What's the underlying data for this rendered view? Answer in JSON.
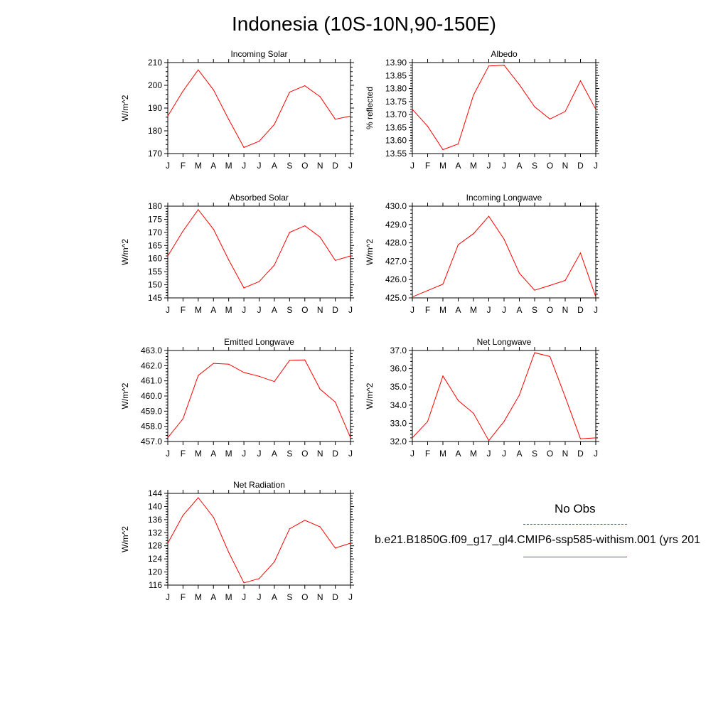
{
  "title": "Indonesia (10S-10N,90-150E)",
  "month_labels": [
    "J",
    "F",
    "M",
    "A",
    "M",
    "J",
    "J",
    "A",
    "S",
    "O",
    "N",
    "D",
    "J"
  ],
  "colors": {
    "model": "#ff0000",
    "obs": "#3344dd"
  },
  "legend": {
    "obs_label": "No Obs",
    "case_label": "b.e21.B1850G.f09_g17_gl4.CMIP6-ssp585-withism.001 (yrs 201"
  },
  "chart_data": [
    {
      "id": "incoming-solar",
      "type": "line",
      "title": "Incoming Solar",
      "ylabel": "W/m^2",
      "x": [
        "J",
        "F",
        "M",
        "A",
        "M",
        "J",
        "J",
        "A",
        "S",
        "O",
        "N",
        "D",
        "J"
      ],
      "ylim": [
        170,
        210
      ],
      "yticks": [
        170,
        180,
        190,
        200,
        210
      ],
      "ytick_labels": [
        "170",
        "180",
        "190",
        "200",
        "210"
      ],
      "series": [
        {
          "values": [
            186.5,
            197.5,
            206.8,
            198.0,
            185.0,
            172.7,
            175.4,
            182.8,
            197.0,
            199.8,
            195.0,
            185.1,
            186.5
          ]
        }
      ]
    },
    {
      "id": "albedo",
      "type": "line",
      "title": "Albedo",
      "ylabel": "% reflected",
      "x": [
        "J",
        "F",
        "M",
        "A",
        "M",
        "J",
        "J",
        "A",
        "S",
        "O",
        "N",
        "D",
        "J"
      ],
      "ylim": [
        13.55,
        13.9
      ],
      "yticks": [
        13.55,
        13.6,
        13.65,
        13.7,
        13.75,
        13.8,
        13.85,
        13.9
      ],
      "ytick_labels": [
        "13.55",
        "13.60",
        "13.65",
        "13.70",
        "13.75",
        "13.80",
        "13.85",
        "13.90"
      ],
      "series": [
        {
          "values": [
            13.72,
            13.655,
            13.565,
            13.587,
            13.775,
            13.887,
            13.89,
            13.815,
            13.73,
            13.683,
            13.712,
            13.83,
            13.72
          ]
        }
      ]
    },
    {
      "id": "absorbed-solar",
      "type": "line",
      "title": "Absorbed Solar",
      "ylabel": "W/m^2",
      "x": [
        "J",
        "F",
        "M",
        "A",
        "M",
        "J",
        "J",
        "A",
        "S",
        "O",
        "N",
        "D",
        "J"
      ],
      "ylim": [
        145,
        180
      ],
      "yticks": [
        145,
        150,
        155,
        160,
        165,
        170,
        175,
        180
      ],
      "ytick_labels": [
        "145",
        "150",
        "155",
        "160",
        "165",
        "170",
        "175",
        "180"
      ],
      "series": [
        {
          "values": [
            161.0,
            170.5,
            178.7,
            171.2,
            159.5,
            148.8,
            151.2,
            157.5,
            170.0,
            172.5,
            168.2,
            159.3,
            161.0
          ]
        }
      ]
    },
    {
      "id": "incoming-longwave",
      "type": "line",
      "title": "Incoming Longwave",
      "ylabel": "W/m^2",
      "x": [
        "J",
        "F",
        "M",
        "A",
        "M",
        "J",
        "J",
        "A",
        "S",
        "O",
        "N",
        "D",
        "J"
      ],
      "ylim": [
        425,
        430
      ],
      "yticks": [
        425,
        426,
        427,
        428,
        429,
        430
      ],
      "ytick_labels": [
        "425.0",
        "426.0",
        "427.0",
        "428.0",
        "429.0",
        "430.0"
      ],
      "series": [
        {
          "values": [
            425.05,
            425.4,
            425.75,
            427.9,
            428.5,
            429.45,
            428.2,
            426.35,
            425.42,
            425.68,
            425.95,
            427.45,
            425.05
          ]
        }
      ]
    },
    {
      "id": "emitted-longwave",
      "type": "line",
      "title": "Emitted Longwave",
      "ylabel": "W/m^2",
      "x": [
        "J",
        "F",
        "M",
        "A",
        "M",
        "J",
        "J",
        "A",
        "S",
        "O",
        "N",
        "D",
        "J"
      ],
      "ylim": [
        457,
        463
      ],
      "yticks": [
        457,
        458,
        459,
        460,
        461,
        462,
        463
      ],
      "ytick_labels": [
        "457.0",
        "458.0",
        "459.0",
        "460.0",
        "461.0",
        "462.0",
        "463.0"
      ],
      "series": [
        {
          "values": [
            457.25,
            458.5,
            461.35,
            462.15,
            462.1,
            461.55,
            461.3,
            460.95,
            462.35,
            462.38,
            460.45,
            459.6,
            457.25
          ]
        }
      ]
    },
    {
      "id": "net-longwave",
      "type": "line",
      "title": "Net Longwave",
      "ylabel": "W/m^2",
      "x": [
        "J",
        "F",
        "M",
        "A",
        "M",
        "J",
        "J",
        "A",
        "S",
        "O",
        "N",
        "D",
        "J"
      ],
      "ylim": [
        32,
        37
      ],
      "yticks": [
        32,
        33,
        34,
        35,
        36,
        37
      ],
      "ytick_labels": [
        "32.0",
        "33.0",
        "34.0",
        "35.0",
        "36.0",
        "37.0"
      ],
      "series": [
        {
          "values": [
            32.2,
            33.1,
            35.6,
            34.25,
            33.55,
            32.05,
            33.1,
            34.55,
            36.88,
            36.67,
            34.45,
            32.15,
            32.2
          ]
        }
      ]
    },
    {
      "id": "net-radiation",
      "type": "line",
      "title": "Net Radiation",
      "ylabel": "W/m^2",
      "x": [
        "J",
        "F",
        "M",
        "A",
        "M",
        "J",
        "J",
        "A",
        "S",
        "O",
        "N",
        "D",
        "J"
      ],
      "ylim": [
        116,
        144
      ],
      "yticks": [
        116,
        120,
        124,
        128,
        132,
        136,
        140,
        144
      ],
      "ytick_labels": [
        "116",
        "120",
        "124",
        "128",
        "132",
        "136",
        "140",
        "144"
      ],
      "series": [
        {
          "values": [
            128.8,
            137.3,
            142.7,
            136.7,
            126.0,
            116.7,
            118.0,
            123.1,
            133.2,
            135.8,
            133.8,
            127.3,
            128.8
          ]
        }
      ]
    }
  ]
}
